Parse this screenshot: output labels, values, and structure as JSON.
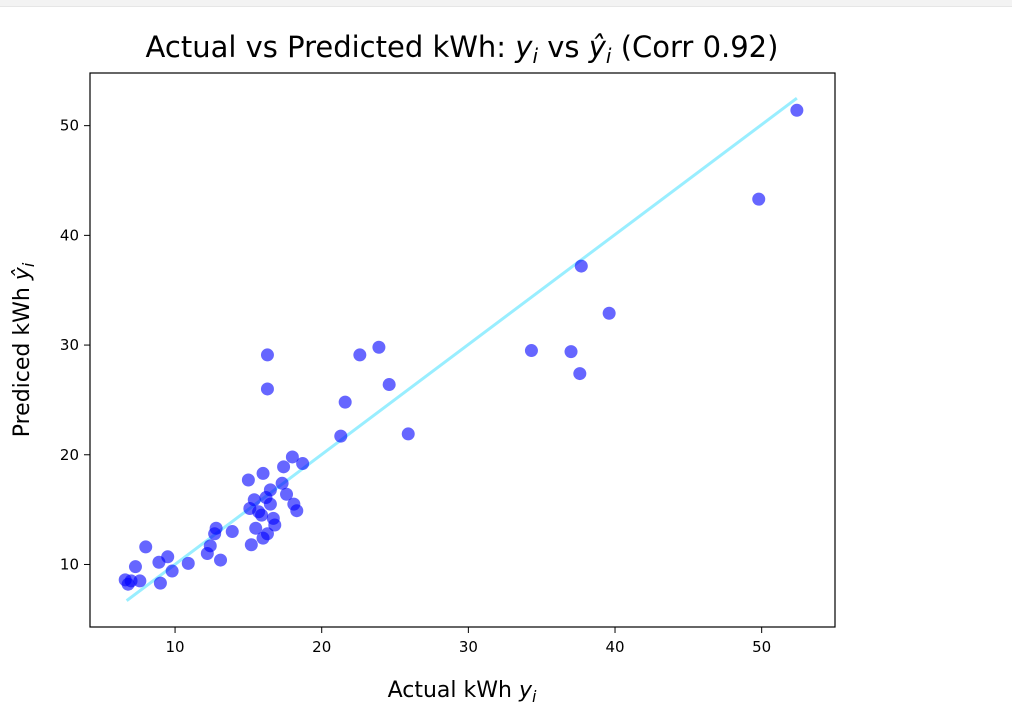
{
  "chart_data": {
    "type": "scatter",
    "title": {
      "main": "Actual vs Predicted kWh: ",
      "y": "y",
      "sub_i": "i",
      "vs": " vs ",
      "yhat": "ŷ",
      "sub_i2": "i",
      "corr": " (Corr 0.92)"
    },
    "xlabel": {
      "text": "Actual kWh ",
      "y": "y",
      "sub_i": "i"
    },
    "ylabel": {
      "text": "Prediced kWh ",
      "yhat": "ŷ",
      "sub_i": "i"
    },
    "xlim": [
      4.2,
      55
    ],
    "ylim": [
      4.3,
      54.8
    ],
    "xticks": [
      10,
      20,
      30,
      40,
      50
    ],
    "yticks": [
      10,
      20,
      30,
      40,
      50
    ],
    "grid": false,
    "point_color": "#0000ff",
    "point_alpha": 0.6,
    "line_color": "#99eeff",
    "fit_line": {
      "x": [
        6.7,
        52.4
      ],
      "y": [
        6.7,
        52.5
      ]
    },
    "points": [
      {
        "x": 6.6,
        "y": 8.6
      },
      {
        "x": 6.8,
        "y": 8.2
      },
      {
        "x": 7.0,
        "y": 8.5
      },
      {
        "x": 7.3,
        "y": 9.8
      },
      {
        "x": 7.6,
        "y": 8.5
      },
      {
        "x": 8.0,
        "y": 11.6
      },
      {
        "x": 8.9,
        "y": 10.2
      },
      {
        "x": 9.0,
        "y": 8.3
      },
      {
        "x": 9.5,
        "y": 10.7
      },
      {
        "x": 9.8,
        "y": 9.4
      },
      {
        "x": 10.9,
        "y": 10.1
      },
      {
        "x": 12.2,
        "y": 11.0
      },
      {
        "x": 12.4,
        "y": 11.7
      },
      {
        "x": 12.7,
        "y": 12.8
      },
      {
        "x": 12.8,
        "y": 13.3
      },
      {
        "x": 13.1,
        "y": 10.4
      },
      {
        "x": 13.9,
        "y": 13.0
      },
      {
        "x": 15.0,
        "y": 17.7
      },
      {
        "x": 15.1,
        "y": 15.1
      },
      {
        "x": 15.2,
        "y": 11.8
      },
      {
        "x": 15.4,
        "y": 15.9
      },
      {
        "x": 15.5,
        "y": 13.3
      },
      {
        "x": 15.7,
        "y": 14.8
      },
      {
        "x": 15.9,
        "y": 14.5
      },
      {
        "x": 16.0,
        "y": 12.4
      },
      {
        "x": 16.0,
        "y": 18.3
      },
      {
        "x": 16.2,
        "y": 16.1
      },
      {
        "x": 16.3,
        "y": 12.8
      },
      {
        "x": 16.3,
        "y": 29.1
      },
      {
        "x": 16.3,
        "y": 26.0
      },
      {
        "x": 16.5,
        "y": 15.5
      },
      {
        "x": 16.5,
        "y": 16.8
      },
      {
        "x": 16.7,
        "y": 14.2
      },
      {
        "x": 16.8,
        "y": 13.6
      },
      {
        "x": 17.3,
        "y": 17.4
      },
      {
        "x": 17.4,
        "y": 18.9
      },
      {
        "x": 17.6,
        "y": 16.4
      },
      {
        "x": 18.0,
        "y": 19.8
      },
      {
        "x": 18.1,
        "y": 15.5
      },
      {
        "x": 18.3,
        "y": 14.9
      },
      {
        "x": 18.7,
        "y": 19.2
      },
      {
        "x": 21.3,
        "y": 21.7
      },
      {
        "x": 21.6,
        "y": 24.8
      },
      {
        "x": 22.6,
        "y": 29.1
      },
      {
        "x": 23.9,
        "y": 29.8
      },
      {
        "x": 24.6,
        "y": 26.4
      },
      {
        "x": 25.9,
        "y": 21.9
      },
      {
        "x": 34.3,
        "y": 29.5
      },
      {
        "x": 37.0,
        "y": 29.4
      },
      {
        "x": 37.6,
        "y": 27.4
      },
      {
        "x": 37.7,
        "y": 37.2
      },
      {
        "x": 39.6,
        "y": 32.9
      },
      {
        "x": 49.8,
        "y": 43.3
      },
      {
        "x": 52.4,
        "y": 51.4
      }
    ]
  }
}
